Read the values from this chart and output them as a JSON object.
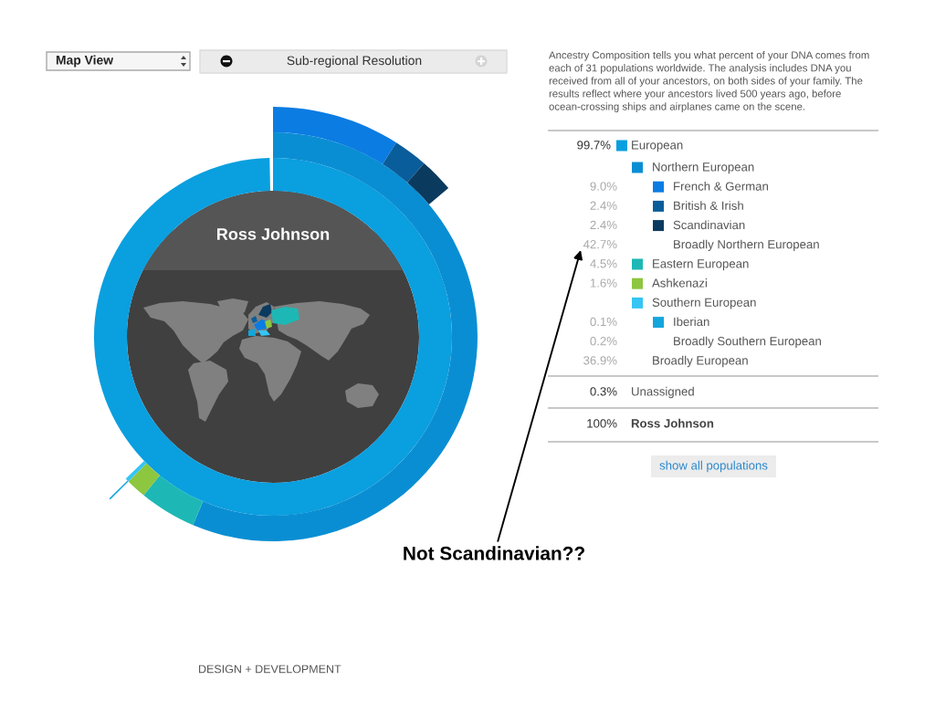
{
  "chart_data": {
    "type": "donut",
    "title": "Ross Johnson",
    "subtitle": "Ancestry Composition tells you what percent of your DNA comes from\neach of 31 populations worldwide. The analysis includes DNA you\nreceived from all of your ancestors, on both sides of your family. The\nresults reflect where your ancestors lived 500 years ago, before\nocean-crossing ships and airplanes came on the scene.",
    "categories": [
      "European",
      "Northern European",
      "French & German",
      "British & Irish",
      "Scandinavian",
      "Broadly Northern European",
      "Eastern European",
      "Ashkenazi",
      "Southern European",
      "Iberian",
      "Broadly Southern European",
      "Broadly European",
      "Unassigned"
    ],
    "series": [
      {
        "values": [
          99.7,
          null,
          null,
          null,
          null,
          null,
          null,
          null,
          null,
          null,
          null,
          null,
          null
        ],
        "colors": [
          "#0a9fdf",
          null,
          null,
          null,
          null,
          null,
          null,
          null,
          null,
          null,
          null,
          null,
          null
        ],
        "value_labels": [
          "99.7%",
          null,
          null,
          null,
          null,
          null,
          null,
          null,
          null,
          null,
          null,
          null,
          null
        ]
      },
      {
        "values": [
          null,
          56.4,
          null,
          null,
          null,
          null,
          4.5,
          1.6,
          0.3,
          null,
          null,
          null,
          null
        ],
        "colors": [
          null,
          "#0a8ed3",
          null,
          null,
          null,
          null,
          "#1db8b5",
          "#8dc63f",
          "#35c5f3",
          null,
          null,
          null,
          null
        ],
        "value_labels": [
          null,
          null,
          null,
          null,
          null,
          null,
          "4.5%",
          "1.6%",
          null,
          null,
          null,
          null,
          null
        ]
      },
      {
        "values": [
          null,
          null,
          9.0,
          2.4,
          2.4,
          null,
          null,
          null,
          null,
          0.1,
          null,
          null,
          null
        ],
        "colors": [
          null,
          null,
          "#0b7ce2",
          "#0a5d9b",
          "#0b3a5f",
          null,
          null,
          null,
          null,
          "#13a6dc",
          null,
          null,
          null
        ],
        "value_labels": [
          null,
          null,
          "9.0%",
          "2.4%",
          "2.4%",
          null,
          null,
          null,
          null,
          "0.1%",
          null,
          null,
          null
        ]
      }
    ],
    "value_labels": [
      null,
      null,
      null,
      null,
      null,
      "42.7%",
      null,
      null,
      null,
      null,
      "0.2%",
      "36.9%",
      "0.3%"
    ],
    "totals": [
      "100%"
    ],
    "legend": "right",
    "annotations": [
      "Map View",
      "Sub-regional Resolution",
      "show all populations",
      "Not Scandinavian??",
      "DESIGN + DEVELOPMENT"
    ]
  }
}
